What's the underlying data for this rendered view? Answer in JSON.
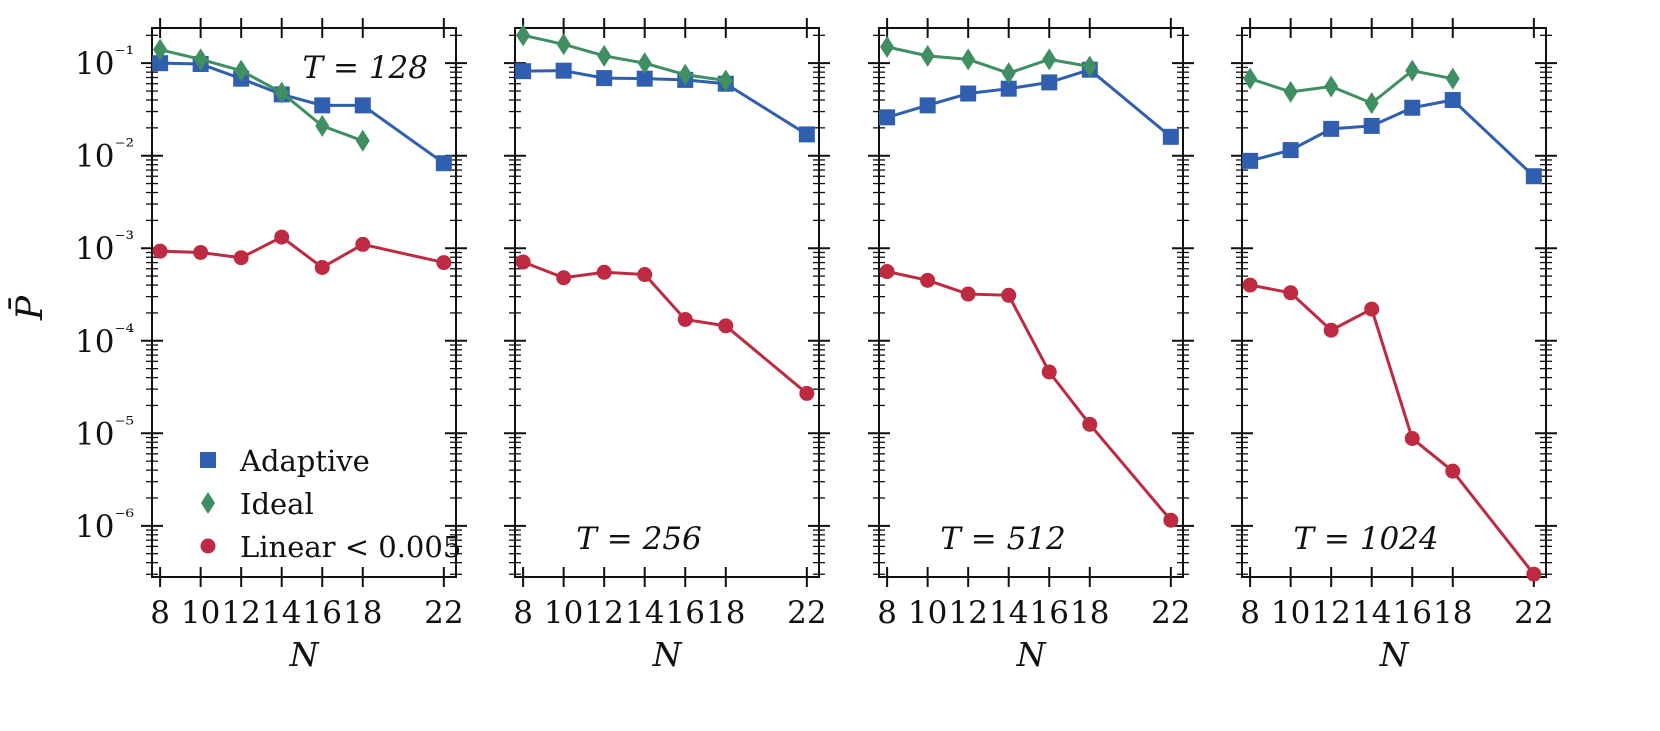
{
  "figure": {
    "ylabel": "P̄",
    "xlabel": "N",
    "colors": {
      "Adaptive": "#2f5fae",
      "Ideal": "#3f8f62",
      "Linear < 0.005": "#be2a41"
    }
  },
  "legend": {
    "location": "lower-left of first panel",
    "entries": [
      {
        "label": "Adaptive",
        "marker": "square"
      },
      {
        "label": "Ideal",
        "marker": "diamond"
      },
      {
        "label": "Linear < 0.005",
        "marker": "circle"
      }
    ]
  },
  "chart_data": [
    {
      "type": "line",
      "title": "T = 128",
      "title_position": "top-right",
      "xlabel": "N",
      "ylabel": "P̄",
      "yscale": "log",
      "xlim": [
        7.6,
        22.6
      ],
      "ylim": [
        2.8e-07,
        0.24
      ],
      "xticks": [
        8,
        10,
        12,
        14,
        16,
        18,
        22
      ],
      "yticks": [
        1e-06,
        1e-05,
        0.0001,
        0.001,
        0.01,
        0.1
      ],
      "series": [
        {
          "name": "Adaptive",
          "marker": "square",
          "x": [
            8,
            10,
            12,
            14,
            16,
            18,
            22
          ],
          "y": [
            0.1,
            0.098,
            0.068,
            0.046,
            0.035,
            0.035,
            0.0083
          ]
        },
        {
          "name": "Ideal",
          "marker": "diamond",
          "x": [
            8,
            10,
            12,
            14,
            16,
            18
          ],
          "y": [
            0.14,
            0.11,
            0.083,
            0.048,
            0.021,
            0.0145
          ]
        },
        {
          "name": "Linear < 0.005",
          "marker": "circle",
          "x": [
            8,
            10,
            12,
            14,
            16,
            18,
            22
          ],
          "y": [
            0.00093,
            0.0009,
            0.00079,
            0.00132,
            0.00062,
            0.0011,
            0.0007
          ]
        }
      ]
    },
    {
      "type": "line",
      "title": "T = 256",
      "title_position": "bottom-center",
      "xlabel": "N",
      "ylabel": "P̄",
      "yscale": "log",
      "xlim": [
        7.6,
        22.6
      ],
      "ylim": [
        2.8e-07,
        0.24
      ],
      "xticks": [
        8,
        10,
        12,
        14,
        16,
        18,
        22
      ],
      "yticks": [
        1e-06,
        1e-05,
        0.0001,
        0.001,
        0.01,
        0.1
      ],
      "series": [
        {
          "name": "Adaptive",
          "marker": "square",
          "x": [
            8,
            10,
            12,
            14,
            16,
            18,
            22
          ],
          "y": [
            0.082,
            0.083,
            0.069,
            0.068,
            0.066,
            0.06,
            0.017
          ]
        },
        {
          "name": "Ideal",
          "marker": "diamond",
          "x": [
            8,
            10,
            12,
            14,
            16,
            18
          ],
          "y": [
            0.2,
            0.16,
            0.12,
            0.1,
            0.075,
            0.065
          ]
        },
        {
          "name": "Linear < 0.005",
          "marker": "circle",
          "x": [
            8,
            10,
            12,
            14,
            16,
            18,
            22
          ],
          "y": [
            0.00071,
            0.00048,
            0.00055,
            0.00052,
            0.00017,
            0.000145,
            2.7e-05
          ]
        }
      ]
    },
    {
      "type": "line",
      "title": "T = 512",
      "title_position": "bottom-center",
      "xlabel": "N",
      "ylabel": "P̄",
      "yscale": "log",
      "xlim": [
        7.6,
        22.6
      ],
      "ylim": [
        2.8e-07,
        0.24
      ],
      "xticks": [
        8,
        10,
        12,
        14,
        16,
        18,
        22
      ],
      "yticks": [
        1e-06,
        1e-05,
        0.0001,
        0.001,
        0.01,
        0.1
      ],
      "series": [
        {
          "name": "Adaptive",
          "marker": "square",
          "x": [
            8,
            10,
            12,
            14,
            16,
            18,
            22
          ],
          "y": [
            0.026,
            0.035,
            0.047,
            0.053,
            0.062,
            0.085,
            0.016
          ]
        },
        {
          "name": "Ideal",
          "marker": "diamond",
          "x": [
            8,
            10,
            12,
            14,
            16,
            18
          ],
          "y": [
            0.15,
            0.12,
            0.11,
            0.078,
            0.11,
            0.092
          ]
        },
        {
          "name": "Linear < 0.005",
          "marker": "circle",
          "x": [
            8,
            10,
            12,
            14,
            16,
            18,
            22
          ],
          "y": [
            0.00056,
            0.00045,
            0.00032,
            0.00031,
            4.6e-05,
            1.25e-05,
            1.15e-06
          ]
        }
      ]
    },
    {
      "type": "line",
      "title": "T = 1024",
      "title_position": "bottom-center",
      "xlabel": "N",
      "ylabel": "P̄",
      "yscale": "log",
      "xlim": [
        7.6,
        22.6
      ],
      "ylim": [
        2.8e-07,
        0.24
      ],
      "xticks": [
        8,
        10,
        12,
        14,
        16,
        18,
        22
      ],
      "yticks": [
        1e-06,
        1e-05,
        0.0001,
        0.001,
        0.01,
        0.1
      ],
      "series": [
        {
          "name": "Adaptive",
          "marker": "square",
          "x": [
            8,
            10,
            12,
            14,
            16,
            18,
            22
          ],
          "y": [
            0.0088,
            0.0115,
            0.0195,
            0.021,
            0.033,
            0.04,
            0.006
          ]
        },
        {
          "name": "Ideal",
          "marker": "diamond",
          "x": [
            8,
            10,
            12,
            14,
            16,
            18
          ],
          "y": [
            0.068,
            0.049,
            0.056,
            0.037,
            0.083,
            0.068
          ]
        },
        {
          "name": "Linear < 0.005",
          "marker": "circle",
          "x": [
            8,
            10,
            12,
            14,
            16,
            18,
            22
          ],
          "y": [
            0.0004,
            0.00033,
            0.00013,
            0.00022,
            8.8e-06,
            3.9e-06,
            3e-07
          ]
        }
      ]
    }
  ]
}
